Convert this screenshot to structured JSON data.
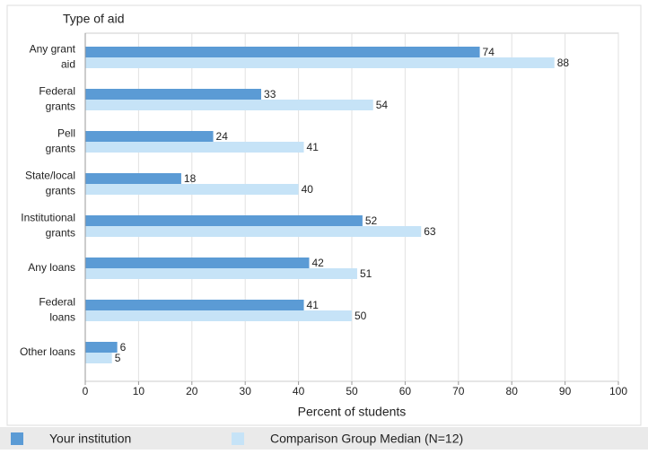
{
  "chart_data": {
    "type": "hbar",
    "y_axis_label": "Type of aid",
    "x_axis_label": "Percent of students",
    "categories": [
      [
        "Any grant",
        "aid"
      ],
      [
        "Federal",
        "grants"
      ],
      [
        "Pell",
        "grants"
      ],
      [
        "State/local",
        "grants"
      ],
      [
        "Institutional",
        "grants"
      ],
      [
        "Any loans"
      ],
      [
        "Federal",
        "loans"
      ],
      [
        "Other loans"
      ]
    ],
    "series": [
      {
        "name": "Your institution",
        "color": "#5b9bd5",
        "values": [
          74,
          33,
          24,
          18,
          52,
          42,
          41,
          6
        ]
      },
      {
        "name": "Comparison Group Median (N=12)",
        "color": "#c6e3f7",
        "values": [
          88,
          54,
          41,
          40,
          63,
          51,
          50,
          5
        ]
      }
    ],
    "xlim": [
      0,
      100
    ],
    "xticks": [
      0,
      10,
      20,
      30,
      40,
      50,
      60,
      70,
      80,
      90,
      100
    ],
    "grid": true
  }
}
